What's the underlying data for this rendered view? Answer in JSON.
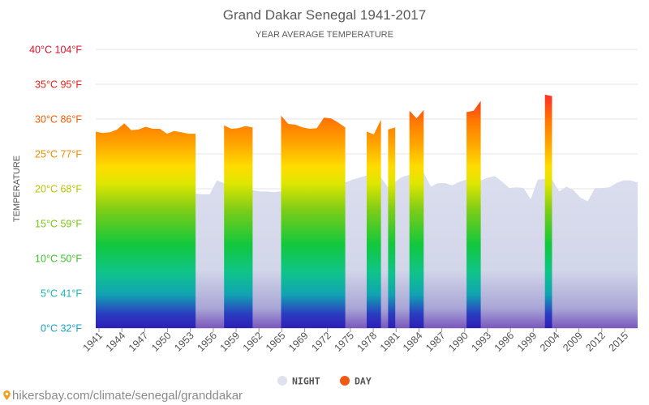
{
  "chart_data": {
    "type": "area",
    "title": "Grand Dakar Senegal 1941-2017",
    "subtitle": "YEAR AVERAGE TEMPERATURE",
    "ylabel": "TEMPERATURE",
    "ylim": [
      0,
      40
    ],
    "y_ticks": [
      {
        "label": "0°C 32°F",
        "color": "#1a9fc0"
      },
      {
        "label": "5°C 41°F",
        "color": "#17b6b0"
      },
      {
        "label": "10°C 50°F",
        "color": "#3fbf2a"
      },
      {
        "label": "15°C 59°F",
        "color": "#7ac416"
      },
      {
        "label": "20°C 68°F",
        "color": "#b6c400"
      },
      {
        "label": "25°C 77°F",
        "color": "#f08a00"
      },
      {
        "label": "30°C 86°F",
        "color": "#f05a00"
      },
      {
        "label": "35°C 95°F",
        "color": "#e8201a"
      },
      {
        "label": "40°C 104°F",
        "color": "#d8102a"
      }
    ],
    "x_tick_labels": [
      "1941",
      "1944",
      "1947",
      "1950",
      "1953",
      "1956",
      "1959",
      "1962",
      "1965",
      "1969",
      "1972",
      "1975",
      "1978",
      "1981",
      "1984",
      "1987",
      "1990",
      "1993",
      "1996",
      "1999",
      "2004",
      "2009",
      "2012",
      "2015"
    ],
    "legend_position": "bottom-center",
    "grid": true,
    "series": [
      {
        "name": "NIGHT",
        "color": "#d7dbeb",
        "x": [
          1941,
          1942,
          1943,
          1944,
          1945,
          1946,
          1947,
          1948,
          1949,
          1950,
          1951,
          1952,
          1953,
          1954,
          1955,
          1956,
          1957,
          1958,
          1959,
          1960,
          1961,
          1962,
          1963,
          1964,
          1965,
          1966,
          1967,
          1968,
          1969,
          1970,
          1971,
          1972,
          1973,
          1974,
          1975,
          1976,
          1977,
          1978,
          1979,
          1980,
          1981,
          1982,
          1983,
          1984,
          1985,
          1986,
          1987,
          1988,
          1989,
          1990,
          1991,
          1992,
          1993,
          1994,
          1995,
          1996,
          1997,
          1998,
          1999,
          2000,
          2001,
          2002,
          2003,
          2004,
          2005,
          2006,
          2007,
          2008,
          2009,
          2010,
          2011,
          2012,
          2013,
          2014,
          2015,
          2016,
          2017
        ],
        "values": [
          21.3,
          21.1,
          21.2,
          21.5,
          21.9,
          21.3,
          20.9,
          21.2,
          20.8,
          20.9,
          20.7,
          20.6,
          20.8,
          20.9,
          19.3,
          19.2,
          19.2,
          21.2,
          20.8,
          20.1,
          21.0,
          21.3,
          19.8,
          19.6,
          19.6,
          19.5,
          19.6,
          21.0,
          21.1,
          21.0,
          21.1,
          21.0,
          21.1,
          21.0,
          20.6,
          20.9,
          21.3,
          21.6,
          21.9,
          21.6,
          21.6,
          20.2,
          21.0,
          21.7,
          22.0,
          21.6,
          22.3,
          20.3,
          20.8,
          20.8,
          20.5,
          21.0,
          21.3,
          20.6,
          21.2,
          21.6,
          21.8,
          21.0,
          20.1,
          20.2,
          20.1,
          18.5,
          21.3,
          21.4,
          21.3,
          19.6,
          20.3,
          19.8,
          18.7,
          18.2,
          20.1,
          20.1,
          20.2,
          20.8,
          21.2,
          21.2,
          20.9
        ]
      },
      {
        "name": "DAY",
        "color": "#f05a14",
        "segments": [
          {
            "x": [
              1941,
              1942,
              1943,
              1944,
              1945,
              1946,
              1947,
              1948,
              1949,
              1950,
              1951,
              1952,
              1953,
              1954,
              1955
            ],
            "values": [
              28.2,
              28.0,
              28.1,
              28.5,
              29.4,
              28.4,
              28.5,
              28.9,
              28.6,
              28.6,
              27.9,
              28.3,
              28.1,
              27.9,
              27.9
            ]
          },
          {
            "x": [
              1959,
              1960,
              1961,
              1962,
              1963
            ],
            "values": [
              29.1,
              28.6,
              28.7,
              29.0,
              28.8
            ]
          },
          {
            "x": [
              1967,
              1968,
              1969,
              1970,
              1971,
              1972,
              1973,
              1974,
              1975,
              1976
            ],
            "values": [
              30.5,
              29.3,
              29.2,
              28.8,
              28.6,
              28.7,
              30.2,
              30.1,
              29.5,
              28.8
            ]
          },
          {
            "x": [
              1979,
              1980,
              1981
            ],
            "values": [
              28.2,
              27.8,
              29.9
            ]
          },
          {
            "x": [
              1982,
              1983
            ],
            "values": [
              28.5,
              28.8
            ]
          },
          {
            "x": [
              1985,
              1986,
              1987
            ],
            "values": [
              31.2,
              30.1,
              31.3
            ]
          },
          {
            "x": [
              1993,
              1994,
              1995
            ],
            "values": [
              31.0,
              31.2,
              32.6
            ]
          },
          {
            "x": [
              2004,
              2005
            ],
            "values": [
              33.5,
              33.3
            ]
          }
        ]
      }
    ]
  },
  "legend": [
    {
      "label": "NIGHT",
      "color": "#dfe2ee"
    },
    {
      "label": "DAY",
      "color": "#f05a14"
    }
  ],
  "footer": {
    "url": "hikersbay.com/climate/senegal/granddakar",
    "icon": "location-pin-icon"
  }
}
